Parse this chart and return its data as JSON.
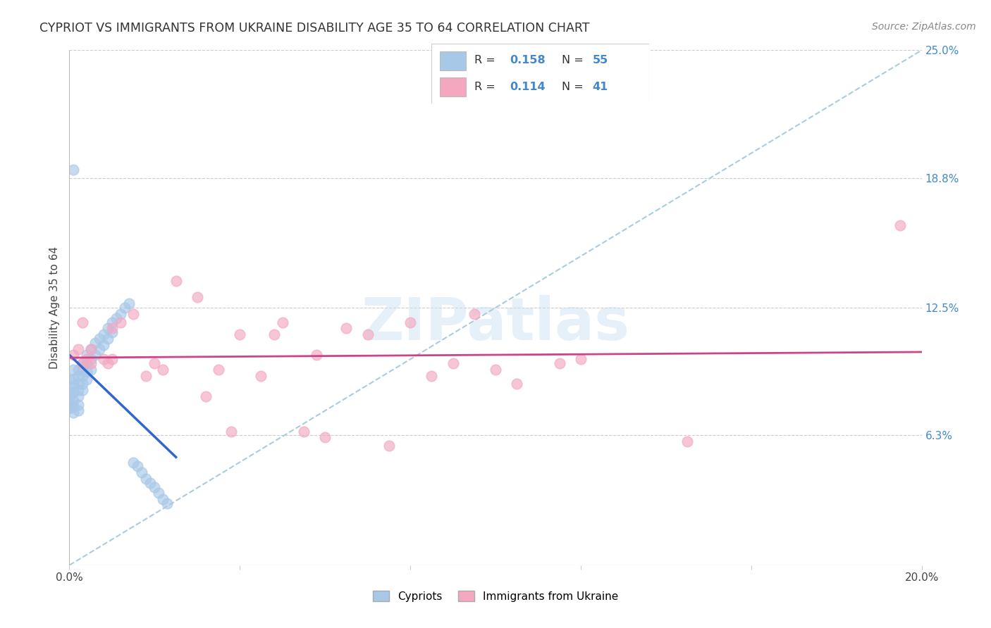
{
  "title": "CYPRIOT VS IMMIGRANTS FROM UKRAINE DISABILITY AGE 35 TO 64 CORRELATION CHART",
  "source": "Source: ZipAtlas.com",
  "ylabel": "Disability Age 35 to 64",
  "xlim": [
    0.0,
    0.2
  ],
  "ylim": [
    0.0,
    0.25
  ],
  "xticks": [
    0.0,
    0.04,
    0.08,
    0.12,
    0.16,
    0.2
  ],
  "xtick_labels": [
    "0.0%",
    "",
    "",
    "",
    "",
    "20.0%"
  ],
  "yticks": [
    0.0,
    0.063,
    0.125,
    0.188,
    0.25
  ],
  "ytick_labels_right": [
    "",
    "6.3%",
    "12.5%",
    "18.8%",
    "25.0%"
  ],
  "legend_R1": "0.158",
  "legend_N1": "55",
  "legend_R2": "0.114",
  "legend_N2": "41",
  "color_blue": "#a8c8e8",
  "color_pink": "#f4a8c0",
  "color_blue_line": "#3366cc",
  "color_pink_line": "#cc4488",
  "color_dashed": "#aaccdd",
  "watermark_text": "ZIPatlas",
  "blue_x": [
    0.0,
    0.0,
    0.0,
    0.0,
    0.0,
    0.001,
    0.001,
    0.001,
    0.001,
    0.001,
    0.001,
    0.001,
    0.001,
    0.002,
    0.002,
    0.002,
    0.002,
    0.002,
    0.002,
    0.002,
    0.003,
    0.003,
    0.003,
    0.003,
    0.003,
    0.004,
    0.004,
    0.004,
    0.004,
    0.005,
    0.005,
    0.005,
    0.006,
    0.006,
    0.007,
    0.007,
    0.008,
    0.008,
    0.009,
    0.009,
    0.01,
    0.01,
    0.011,
    0.012,
    0.013,
    0.014,
    0.015,
    0.016,
    0.017,
    0.018,
    0.019,
    0.02,
    0.021,
    0.022,
    0.023
  ],
  "blue_y": [
    0.09,
    0.085,
    0.082,
    0.079,
    0.076,
    0.095,
    0.192,
    0.09,
    0.087,
    0.084,
    0.08,
    0.077,
    0.074,
    0.095,
    0.092,
    0.088,
    0.085,
    0.082,
    0.078,
    0.075,
    0.098,
    0.095,
    0.092,
    0.088,
    0.085,
    0.102,
    0.098,
    0.094,
    0.09,
    0.105,
    0.1,
    0.095,
    0.108,
    0.102,
    0.11,
    0.105,
    0.112,
    0.107,
    0.115,
    0.11,
    0.118,
    0.113,
    0.12,
    0.122,
    0.125,
    0.127,
    0.05,
    0.048,
    0.045,
    0.042,
    0.04,
    0.038,
    0.035,
    0.032,
    0.03
  ],
  "pink_x": [
    0.001,
    0.002,
    0.003,
    0.003,
    0.004,
    0.005,
    0.005,
    0.008,
    0.009,
    0.01,
    0.01,
    0.012,
    0.015,
    0.018,
    0.02,
    0.022,
    0.025,
    0.03,
    0.032,
    0.035,
    0.038,
    0.04,
    0.045,
    0.048,
    0.05,
    0.055,
    0.058,
    0.06,
    0.065,
    0.07,
    0.075,
    0.08,
    0.085,
    0.09,
    0.095,
    0.1,
    0.105,
    0.115,
    0.12,
    0.145,
    0.195
  ],
  "pink_y": [
    0.102,
    0.105,
    0.098,
    0.118,
    0.1,
    0.105,
    0.098,
    0.1,
    0.098,
    0.1,
    0.115,
    0.118,
    0.122,
    0.092,
    0.098,
    0.095,
    0.138,
    0.13,
    0.082,
    0.095,
    0.065,
    0.112,
    0.092,
    0.112,
    0.118,
    0.065,
    0.102,
    0.062,
    0.115,
    0.112,
    0.058,
    0.118,
    0.092,
    0.098,
    0.122,
    0.095,
    0.088,
    0.098,
    0.1,
    0.06,
    0.165
  ]
}
